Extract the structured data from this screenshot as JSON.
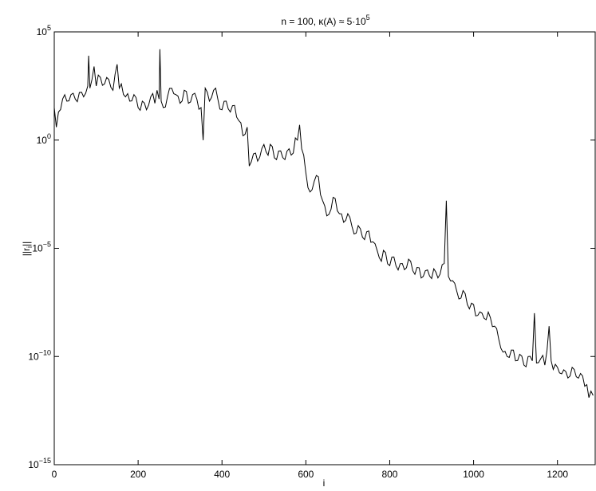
{
  "chart_data": {
    "type": "line",
    "title_main": "n = 100,  κ(A) ≈ 5·10",
    "title_sup": "5",
    "xlabel": "i",
    "ylabel_main": "||r",
    "ylabel_sub": "i",
    "ylabel_end": "||",
    "xlim": [
      0,
      1290
    ],
    "ylim_exp": [
      -15,
      5
    ],
    "yscale": "log",
    "grid": false,
    "x_ticks": [
      {
        "value": 0,
        "label": "0"
      },
      {
        "value": 200,
        "label": "200"
      },
      {
        "value": 400,
        "label": "400"
      },
      {
        "value": 600,
        "label": "600"
      },
      {
        "value": 800,
        "label": "800"
      },
      {
        "value": 1000,
        "label": "1000"
      },
      {
        "value": 1200,
        "label": "1200"
      }
    ],
    "y_ticks": [
      {
        "exp": 5,
        "base": "10",
        "sup": "5"
      },
      {
        "exp": 0,
        "base": "10",
        "sup": "0"
      },
      {
        "exp": -5,
        "base": "10",
        "sup": "−5"
      },
      {
        "exp": -10,
        "base": "10",
        "sup": "−10"
      },
      {
        "exp": -15,
        "base": "10",
        "sup": "−15"
      }
    ],
    "series": [
      {
        "line_color": "#000000",
        "points": [
          [
            0,
            1.5
          ],
          [
            5,
            0.6
          ],
          [
            10,
            1.3
          ],
          [
            20,
            1.9
          ],
          [
            30,
            1.8
          ],
          [
            40,
            2.1
          ],
          [
            50,
            1.9
          ],
          [
            60,
            2.2
          ],
          [
            70,
            2.0
          ],
          [
            80,
            2.5
          ],
          [
            82,
            3.9
          ],
          [
            85,
            2.4
          ],
          [
            90,
            2.8
          ],
          [
            95,
            3.4
          ],
          [
            100,
            2.5
          ],
          [
            110,
            2.9
          ],
          [
            120,
            2.6
          ],
          [
            130,
            2.8
          ],
          [
            140,
            2.3
          ],
          [
            150,
            3.5
          ],
          [
            155,
            2.4
          ],
          [
            160,
            2.6
          ],
          [
            170,
            2.0
          ],
          [
            180,
            1.8
          ],
          [
            190,
            2.1
          ],
          [
            200,
            1.5
          ],
          [
            210,
            1.8
          ],
          [
            220,
            1.4
          ],
          [
            230,
            2.0
          ],
          [
            240,
            1.7
          ],
          [
            245,
            2.3
          ],
          [
            250,
            1.9
          ],
          [
            252,
            4.2
          ],
          [
            255,
            1.8
          ],
          [
            260,
            1.5
          ],
          [
            270,
            2.0
          ],
          [
            280,
            2.4
          ],
          [
            290,
            2.1
          ],
          [
            300,
            1.7
          ],
          [
            310,
            2.3
          ],
          [
            320,
            1.7
          ],
          [
            330,
            2.1
          ],
          [
            340,
            1.9
          ],
          [
            350,
            1.5
          ],
          [
            355,
            0.0
          ],
          [
            360,
            2.4
          ],
          [
            370,
            1.8
          ],
          [
            380,
            2.3
          ],
          [
            390,
            1.9
          ],
          [
            400,
            1.4
          ],
          [
            410,
            1.8
          ],
          [
            420,
            1.3
          ],
          [
            430,
            1.6
          ],
          [
            440,
            0.9
          ],
          [
            450,
            0.2
          ],
          [
            460,
            0.6
          ],
          [
            465,
            -1.2
          ],
          [
            470,
            -1.0
          ],
          [
            480,
            -0.6
          ],
          [
            490,
            -0.8
          ],
          [
            500,
            -0.2
          ],
          [
            510,
            -0.7
          ],
          [
            520,
            -0.3
          ],
          [
            530,
            -0.9
          ],
          [
            540,
            -0.5
          ],
          [
            550,
            -0.9
          ],
          [
            560,
            -0.4
          ],
          [
            570,
            -0.6
          ],
          [
            575,
            0.1
          ],
          [
            580,
            0.0
          ],
          [
            585,
            0.7
          ],
          [
            590,
            -0.4
          ],
          [
            600,
            -1.5
          ],
          [
            605,
            -2.2
          ],
          [
            610,
            -2.4
          ],
          [
            620,
            -1.9
          ],
          [
            630,
            -1.7
          ],
          [
            640,
            -2.8
          ],
          [
            650,
            -3.5
          ],
          [
            660,
            -3.2
          ],
          [
            670,
            -2.7
          ],
          [
            680,
            -3.4
          ],
          [
            690,
            -3.8
          ],
          [
            700,
            -3.4
          ],
          [
            710,
            -4.0
          ],
          [
            720,
            -4.3
          ],
          [
            730,
            -4.1
          ],
          [
            740,
            -4.6
          ],
          [
            750,
            -4.2
          ],
          [
            760,
            -4.7
          ],
          [
            770,
            -5.1
          ],
          [
            780,
            -5.6
          ],
          [
            790,
            -5.2
          ],
          [
            800,
            -5.8
          ],
          [
            810,
            -5.4
          ],
          [
            820,
            -6.0
          ],
          [
            830,
            -5.7
          ],
          [
            840,
            -5.9
          ],
          [
            850,
            -5.6
          ],
          [
            860,
            -6.2
          ],
          [
            870,
            -5.9
          ],
          [
            880,
            -6.3
          ],
          [
            890,
            -6.0
          ],
          [
            900,
            -6.4
          ],
          [
            910,
            -6.1
          ],
          [
            920,
            -6.2
          ],
          [
            930,
            -5.7
          ],
          [
            935,
            -2.8
          ],
          [
            940,
            -6.3
          ],
          [
            950,
            -6.5
          ],
          [
            960,
            -7.0
          ],
          [
            970,
            -7.3
          ],
          [
            980,
            -7.1
          ],
          [
            990,
            -7.8
          ],
          [
            1000,
            -7.6
          ],
          [
            1010,
            -8.1
          ],
          [
            1020,
            -8.0
          ],
          [
            1030,
            -8.3
          ],
          [
            1040,
            -8.2
          ],
          [
            1050,
            -8.6
          ],
          [
            1060,
            -9.2
          ],
          [
            1070,
            -9.8
          ],
          [
            1080,
            -10.0
          ],
          [
            1090,
            -9.7
          ],
          [
            1100,
            -10.2
          ],
          [
            1110,
            -9.9
          ],
          [
            1120,
            -10.4
          ],
          [
            1130,
            -10.0
          ],
          [
            1140,
            -10.2
          ],
          [
            1145,
            -8.0
          ],
          [
            1150,
            -10.3
          ],
          [
            1160,
            -10.1
          ],
          [
            1170,
            -10.4
          ],
          [
            1180,
            -8.6
          ],
          [
            1185,
            -10.2
          ],
          [
            1190,
            -10.6
          ],
          [
            1200,
            -10.5
          ],
          [
            1210,
            -10.8
          ],
          [
            1220,
            -10.7
          ],
          [
            1230,
            -10.9
          ],
          [
            1240,
            -10.6
          ],
          [
            1250,
            -11.0
          ],
          [
            1260,
            -10.9
          ],
          [
            1270,
            -11.3
          ],
          [
            1275,
            -11.9
          ],
          [
            1280,
            -11.6
          ],
          [
            1285,
            -11.8
          ]
        ]
      }
    ]
  }
}
